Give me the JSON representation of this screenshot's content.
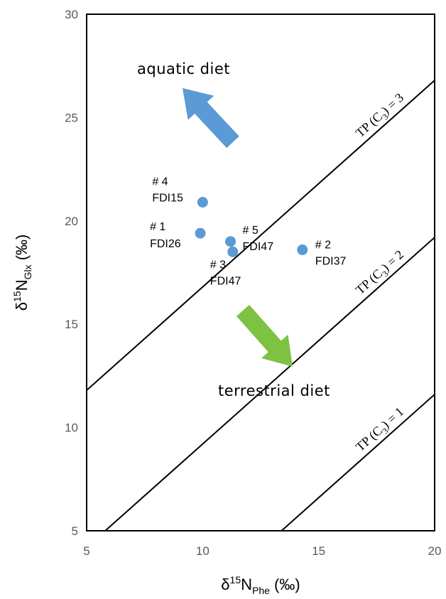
{
  "chart_data": {
    "type": "scatter",
    "xlabel": {
      "prefix": "δ",
      "sup": "15",
      "main": "N",
      "sub": "Phe",
      "unit": " (‰)"
    },
    "ylabel": {
      "prefix": "δ",
      "sup": "15",
      "main": "N",
      "sub": "Glx",
      "unit": " (‰)"
    },
    "xlim": [
      5,
      20
    ],
    "ylim": [
      5,
      30
    ],
    "xticks": [
      "5",
      "10",
      "15",
      "20"
    ],
    "yticks": [
      "5",
      "10",
      "15",
      "20",
      "25",
      "30"
    ],
    "grid": false,
    "marker_color": "#5b9bd5",
    "points": [
      {
        "x": 10.0,
        "y": 20.9,
        "label1": "# 4",
        "label2": "FDI15"
      },
      {
        "x": 9.9,
        "y": 19.4,
        "label1": "# 1",
        "label2": "FDI26"
      },
      {
        "x": 11.2,
        "y": 19.0,
        "label1": "# 5",
        "label2": "FDI47"
      },
      {
        "x": 11.3,
        "y": 18.5,
        "label1": "# 3",
        "label2": "FDI47"
      },
      {
        "x": 14.3,
        "y": 18.6,
        "label1": "# 2",
        "label2": "FDI37"
      }
    ],
    "lines": [
      {
        "label_pre": "TP (C",
        "label_sub": "3",
        "label_post": ") = 3",
        "x1": 5.0,
        "y1": 11.8,
        "x2": 20.0,
        "y2": 26.8
      },
      {
        "label_pre": "TP (C",
        "label_sub": "3",
        "label_post": ") = 2",
        "x1": 5.8,
        "y1": 5.0,
        "x2": 20.0,
        "y2": 19.2
      },
      {
        "label_pre": "TP (C",
        "label_sub": "3",
        "label_post": ") = 1",
        "x1": 13.4,
        "y1": 5.0,
        "x2": 20.0,
        "y2": 11.6
      }
    ],
    "annotations": [
      {
        "text": "aquatic diet",
        "color": "#5b9bd5"
      },
      {
        "text": "terrestrial diet",
        "color": "#7dc242"
      }
    ]
  }
}
